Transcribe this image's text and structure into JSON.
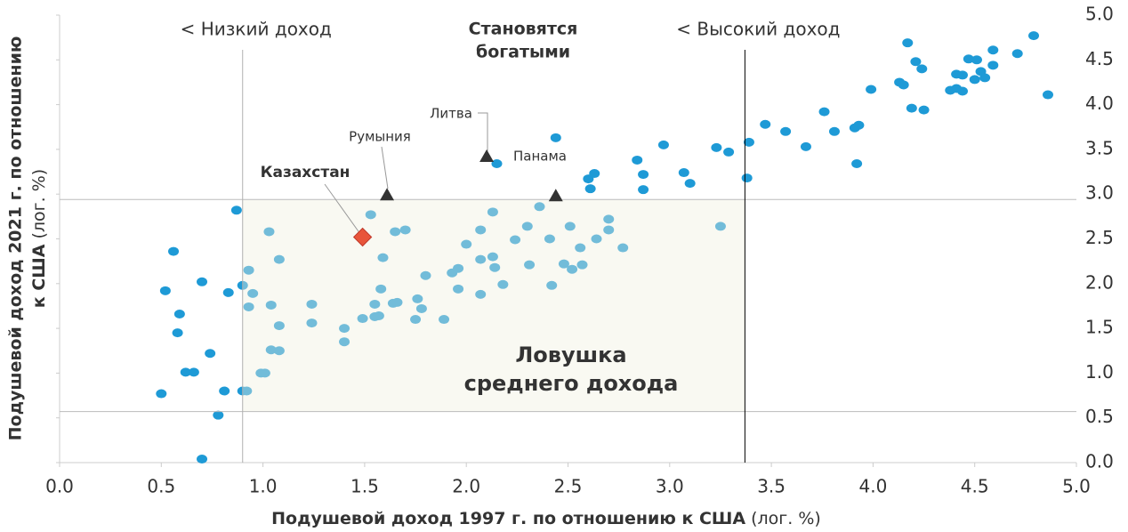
{
  "chart_data": {
    "type": "scatter",
    "xlabel": "Подушевой доход 1997 г. по отношению к США",
    "xlabel_unit": "(лог. %)",
    "ylabel": [
      "Подушевой доход 2021 г. по отношению",
      "к США"
    ],
    "ylabel_unit": "(лог. %)",
    "xlim": [
      0,
      5
    ],
    "ylim": [
      0,
      5
    ],
    "xticks": [
      {
        "value": 0,
        "label": "0.0"
      },
      0.5,
      {
        "value": 1,
        "label": "1.0"
      },
      1.5,
      {
        "value": 2,
        "label": "2.0"
      },
      2.5,
      {
        "value": 3,
        "label": "3.0"
      },
      3.5,
      {
        "value": 4,
        "label": "4.0"
      },
      4.5,
      {
        "value": 5,
        "label": "5.0"
      }
    ],
    "yticks": [
      {
        "value": 0,
        "label": "0.0"
      },
      0.5,
      {
        "value": 1,
        "label": "1.0"
      },
      1.5,
      {
        "value": 2,
        "label": "2.0"
      },
      2.5,
      {
        "value": 3,
        "label": "3.0"
      },
      3.5,
      {
        "value": 4,
        "label": "4.0"
      },
      4.5,
      {
        "value": 5,
        "label": "5.0"
      }
    ],
    "color": "#1e9ad6",
    "x": [
      0.5,
      0.52,
      0.56,
      0.59,
      0.58,
      0.62,
      0.66,
      0.7,
      0.74,
      0.7,
      0.78,
      0.81,
      0.83,
      0.87,
      0.9,
      0.9,
      0.92,
      0.93,
      0.93,
      0.95,
      0.99,
      1.01,
      1.03,
      1.04,
      1.04,
      1.08,
      1.08,
      1.08,
      1.24,
      1.24,
      1.4,
      1.4,
      1.49,
      1.53,
      1.55,
      1.55,
      1.57,
      1.58,
      1.59,
      1.64,
      1.66,
      1.65,
      1.7,
      1.75,
      1.76,
      1.78,
      1.8,
      1.89,
      1.93,
      1.96,
      1.96,
      2.0,
      2.07,
      2.07,
      2.07,
      2.13,
      2.13,
      2.14,
      2.18,
      2.15,
      2.24,
      2.3,
      2.31,
      2.36,
      2.41,
      2.42,
      2.44,
      2.48,
      2.51,
      2.52,
      2.56,
      2.57,
      2.6,
      2.61,
      2.63,
      2.64,
      2.7,
      2.7,
      2.77,
      2.84,
      2.87,
      2.87,
      2.97,
      3.07,
      3.1,
      3.23,
      3.25,
      3.29,
      3.38,
      3.39,
      3.47,
      3.57,
      3.67,
      3.76,
      3.81,
      3.91,
      3.93,
      3.92,
      3.99,
      4.13,
      4.15,
      4.17,
      4.19,
      4.21,
      4.24,
      4.25,
      4.38,
      4.41,
      4.41,
      4.44,
      4.44,
      4.47,
      4.51,
      4.5,
      4.53,
      4.55,
      4.59,
      4.59,
      4.71,
      4.79,
      4.86
    ],
    "values": [
      0.77,
      1.92,
      2.36,
      1.66,
      1.45,
      1.01,
      1.01,
      2.02,
      1.22,
      0.04,
      0.53,
      0.8,
      1.9,
      2.82,
      1.98,
      0.8,
      0.8,
      2.15,
      1.74,
      1.89,
      1.0,
      1.0,
      2.58,
      1.76,
      1.26,
      1.25,
      2.27,
      1.53,
      1.77,
      1.56,
      1.5,
      1.35,
      1.61,
      2.77,
      1.77,
      1.63,
      1.64,
      1.94,
      2.29,
      1.78,
      1.79,
      2.58,
      2.6,
      1.6,
      1.83,
      1.72,
      2.09,
      1.6,
      2.12,
      2.17,
      1.94,
      2.44,
      2.6,
      2.27,
      1.88,
      2.8,
      2.3,
      2.18,
      1.99,
      3.34,
      2.49,
      2.64,
      2.21,
      2.86,
      2.5,
      1.98,
      3.63,
      2.22,
      2.64,
      2.16,
      2.4,
      2.21,
      3.17,
      3.06,
      3.23,
      2.5,
      2.72,
      2.6,
      2.4,
      3.38,
      3.22,
      3.05,
      3.55,
      3.24,
      3.12,
      3.52,
      2.64,
      3.47,
      3.18,
      3.58,
      3.78,
      3.7,
      3.53,
      3.92,
      3.7,
      3.74,
      3.77,
      3.34,
      4.17,
      4.25,
      4.22,
      4.69,
      3.96,
      4.48,
      4.4,
      3.94,
      4.16,
      4.34,
      4.18,
      4.33,
      4.15,
      4.51,
      4.5,
      4.28,
      4.37,
      4.3,
      4.61,
      4.44,
      4.57,
      4.77,
      4.11
    ],
    "vlines": [
      {
        "value": 0.9,
        "label": "< Низкий доход",
        "color": "#b0b0b0"
      },
      {
        "value": 3.37,
        "label": "< Высокий доход",
        "color": "#000000"
      }
    ],
    "hlines": [
      2.94,
      0.57
    ],
    "trap_label": [
      "Ловушка",
      "среднего дохода"
    ],
    "rich_label": [
      "Становятся",
      "богатыми"
    ],
    "annotations": [
      {
        "label": "Казахстан",
        "x": 1.49,
        "y": 2.52,
        "marker": "diamond",
        "color": "#e8553a"
      },
      {
        "label": "Румыния",
        "x": 1.61,
        "y": 2.99,
        "marker": "triangle",
        "color": "#333333"
      },
      {
        "label": "Литва",
        "x": 2.1,
        "y": 3.42,
        "marker": "triangle",
        "color": "#333333"
      },
      {
        "label": "Панама",
        "x": 2.44,
        "y": 2.98,
        "marker": "triangle",
        "color": "#333333"
      }
    ]
  }
}
